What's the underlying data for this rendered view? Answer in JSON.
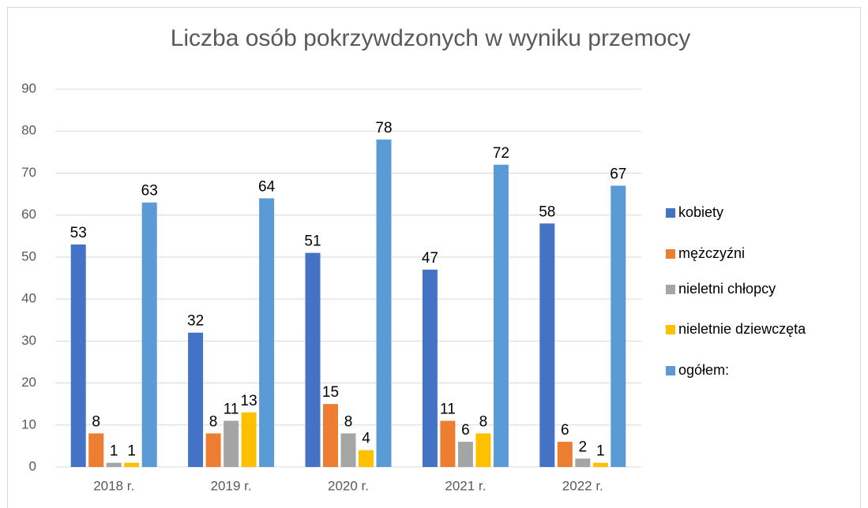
{
  "chart_data": {
    "type": "bar",
    "title": "Liczba osób pokrzywdzonych w wyniku przemocy",
    "categories": [
      "2018 r.",
      "2019 r.",
      "2020 r.",
      "2021 r.",
      "2022 r."
    ],
    "series": [
      {
        "name": "kobiety",
        "color": "#4472c4",
        "values": [
          53,
          32,
          51,
          47,
          58
        ]
      },
      {
        "name": "mężczyźni",
        "color": "#ed7d31",
        "values": [
          8,
          8,
          15,
          11,
          6
        ]
      },
      {
        "name": "nieletni chłopcy",
        "color": "#a5a5a5",
        "values": [
          1,
          11,
          8,
          6,
          2
        ]
      },
      {
        "name": "nieletnie dziewczęta",
        "color": "#ffc000",
        "values": [
          1,
          13,
          4,
          8,
          1
        ]
      },
      {
        "name": "ogółem:",
        "color": "#5b9bd5",
        "values": [
          63,
          64,
          78,
          72,
          67
        ]
      }
    ],
    "ylim": [
      0,
      90
    ],
    "yticks": [
      0,
      10,
      20,
      30,
      40,
      50,
      60,
      70,
      80,
      90
    ],
    "grid": true,
    "legend": "right"
  }
}
